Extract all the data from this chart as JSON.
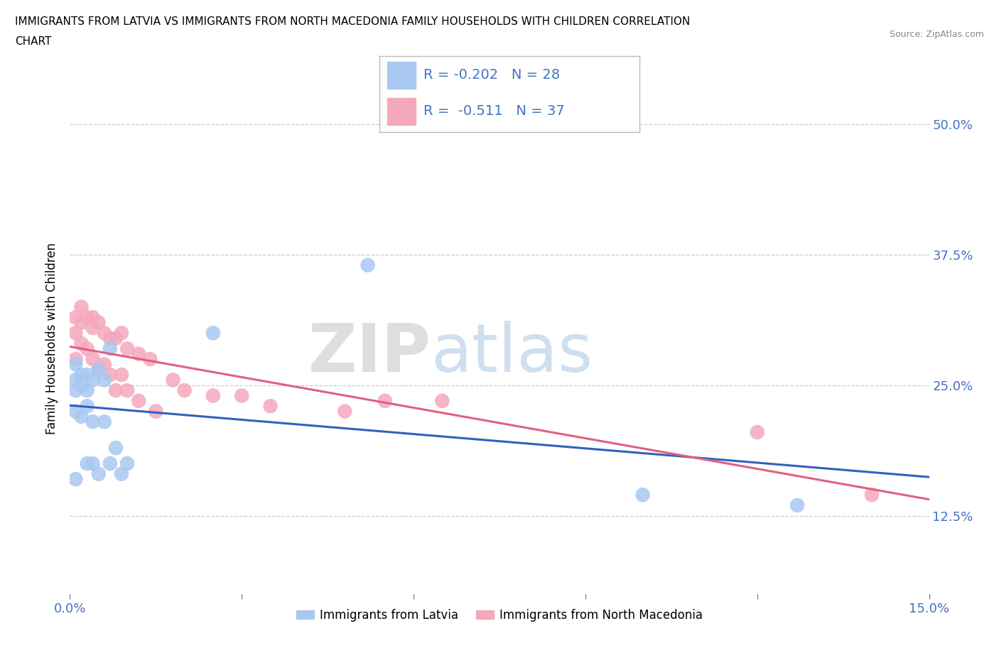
{
  "title_line1": "IMMIGRANTS FROM LATVIA VS IMMIGRANTS FROM NORTH MACEDONIA FAMILY HOUSEHOLDS WITH CHILDREN CORRELATION",
  "title_line2": "CHART",
  "source_text": "Source: ZipAtlas.com",
  "ylabel": "Family Households with Children",
  "xlim": [
    0.0,
    0.15
  ],
  "ylim": [
    0.05,
    0.54
  ],
  "ytick_positions": [
    0.125,
    0.25,
    0.375,
    0.5
  ],
  "ytick_labels": [
    "12.5%",
    "25.0%",
    "37.5%",
    "50.0%"
  ],
  "blue_R": -0.202,
  "blue_N": 28,
  "pink_R": -0.511,
  "pink_N": 37,
  "blue_color": "#A8C8F0",
  "pink_color": "#F5A8BC",
  "blue_line_color": "#3060C0",
  "pink_line_color": "#E06080",
  "watermark_zip": "ZIP",
  "watermark_atlas": "atlas",
  "legend_label_blue": "Immigrants from Latvia",
  "legend_label_pink": "Immigrants from North Macedonia",
  "blue_x": [
    0.001,
    0.001,
    0.001,
    0.001,
    0.001,
    0.002,
    0.002,
    0.002,
    0.003,
    0.003,
    0.003,
    0.003,
    0.004,
    0.004,
    0.004,
    0.005,
    0.005,
    0.006,
    0.006,
    0.007,
    0.007,
    0.008,
    0.009,
    0.01,
    0.025,
    0.052,
    0.1,
    0.127
  ],
  "blue_y": [
    0.27,
    0.255,
    0.245,
    0.225,
    0.16,
    0.26,
    0.25,
    0.22,
    0.26,
    0.245,
    0.23,
    0.175,
    0.255,
    0.215,
    0.175,
    0.265,
    0.165,
    0.255,
    0.215,
    0.285,
    0.175,
    0.19,
    0.165,
    0.175,
    0.3,
    0.365,
    0.145,
    0.135
  ],
  "pink_x": [
    0.001,
    0.001,
    0.001,
    0.002,
    0.002,
    0.002,
    0.003,
    0.003,
    0.004,
    0.004,
    0.004,
    0.005,
    0.005,
    0.006,
    0.006,
    0.007,
    0.007,
    0.008,
    0.008,
    0.009,
    0.009,
    0.01,
    0.01,
    0.012,
    0.012,
    0.014,
    0.015,
    0.018,
    0.02,
    0.025,
    0.03,
    0.035,
    0.048,
    0.055,
    0.065,
    0.12,
    0.14
  ],
  "pink_y": [
    0.315,
    0.3,
    0.275,
    0.325,
    0.31,
    0.29,
    0.315,
    0.285,
    0.315,
    0.305,
    0.275,
    0.31,
    0.265,
    0.3,
    0.27,
    0.295,
    0.26,
    0.295,
    0.245,
    0.3,
    0.26,
    0.285,
    0.245,
    0.28,
    0.235,
    0.275,
    0.225,
    0.255,
    0.245,
    0.24,
    0.24,
    0.23,
    0.225,
    0.235,
    0.235,
    0.205,
    0.145
  ],
  "grid_color": "#CCCCCC",
  "bg_color": "#FFFFFF"
}
